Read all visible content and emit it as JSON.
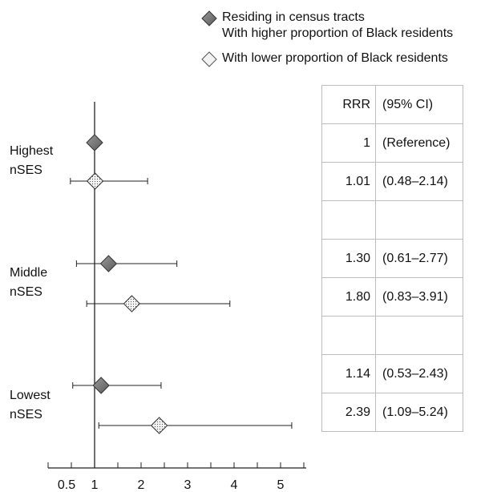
{
  "legend": {
    "higher_line1": "Residing in census tracts",
    "higher_line2": "With higher proportion of Black residents",
    "lower": "With lower proportion of Black residents"
  },
  "groups": [
    {
      "line1": "Highest",
      "line2": "nSES"
    },
    {
      "line1": "Middle",
      "line2": "nSES"
    },
    {
      "line1": "Lowest",
      "line2": "nSES"
    }
  ],
  "table": {
    "header": {
      "rrr": "RRR",
      "ci": "(95% CI)"
    },
    "rows": [
      {
        "rrr": "1",
        "ci": "(Reference)"
      },
      {
        "rrr": "1.01",
        "ci": "(0.48–2.14)"
      },
      {
        "rrr": "",
        "ci": ""
      },
      {
        "rrr": "1.30",
        "ci": "(0.61–2.77)"
      },
      {
        "rrr": "1.80",
        "ci": "(0.83–3.91)"
      },
      {
        "rrr": "",
        "ci": ""
      },
      {
        "rrr": "1.14",
        "ci": "(0.53–2.43)"
      },
      {
        "rrr": "2.39",
        "ci": "(1.09–5.24)"
      }
    ]
  },
  "colors": {
    "higher_marker": "#7a7a7a",
    "lower_marker": "#f2f2f2",
    "line": "#222222",
    "table_border": "#bdbdbd"
  },
  "chart_data": {
    "type": "forest",
    "title": "",
    "xlabel": "",
    "ylabel": "",
    "xlim": [
      0,
      5.5
    ],
    "xticks": [
      0.5,
      1,
      2,
      3,
      4,
      5
    ],
    "reference_line": 1,
    "grid": false,
    "legend_position": "top-right",
    "series": [
      {
        "name": "With higher proportion of Black residents",
        "marker": "dark-diamond"
      },
      {
        "name": "With lower proportion of Black residents",
        "marker": "light-dotted-diamond"
      }
    ],
    "points": [
      {
        "group": "Highest nSES",
        "series": 0,
        "rrr": 1,
        "lo": null,
        "hi": null
      },
      {
        "group": "Highest nSES",
        "series": 1,
        "rrr": 1.01,
        "lo": 0.48,
        "hi": 2.14
      },
      {
        "group": "Middle nSES",
        "series": 0,
        "rrr": 1.3,
        "lo": 0.61,
        "hi": 2.77
      },
      {
        "group": "Middle nSES",
        "series": 1,
        "rrr": 1.8,
        "lo": 0.83,
        "hi": 3.91
      },
      {
        "group": "Lowest nSES",
        "series": 0,
        "rrr": 1.14,
        "lo": 0.53,
        "hi": 2.43
      },
      {
        "group": "Lowest nSES",
        "series": 1,
        "rrr": 2.39,
        "lo": 1.09,
        "hi": 5.24
      }
    ]
  }
}
